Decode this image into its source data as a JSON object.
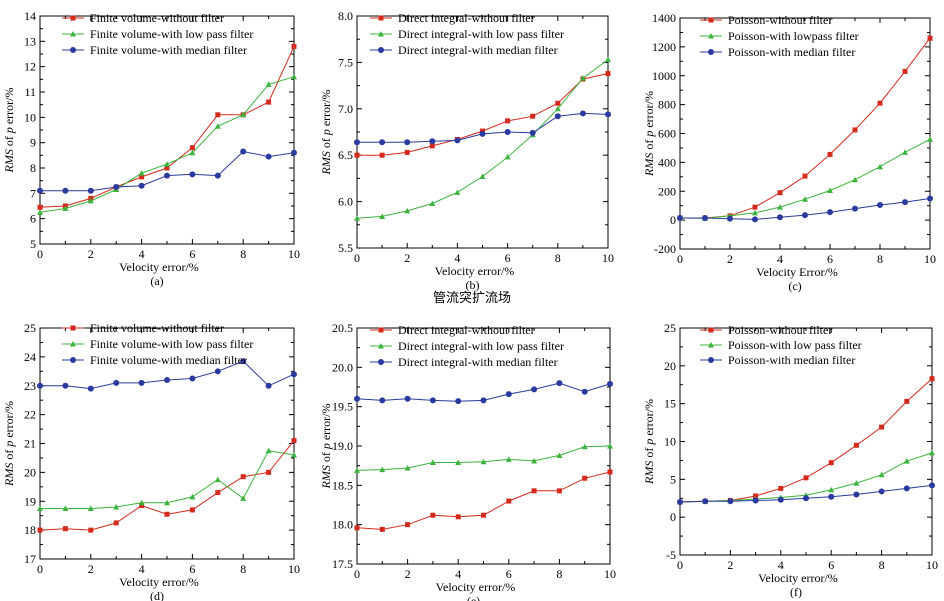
{
  "middle_title": "管流突扩流场",
  "colors": {
    "red": "#d42a1c",
    "green": "#3cb33c",
    "blue": "#2b3a9e"
  },
  "chart_data": [
    {
      "type": "line",
      "caption": "(a)",
      "xlabel": "Velocity error/%",
      "ylabel_italic": "RMS",
      "ylabel_mid": " of ",
      "ylabel_p": "p",
      "ylabel_rest": " error/%",
      "xlim": [
        0,
        10
      ],
      "ylim": [
        5,
        14
      ],
      "xticks": [
        0,
        2,
        4,
        6,
        8,
        10
      ],
      "yticks": [
        5,
        6,
        7,
        8,
        9,
        10,
        11,
        12,
        13,
        14
      ],
      "x": [
        0,
        1,
        2,
        3,
        4,
        5,
        6,
        7,
        8,
        9,
        10
      ],
      "series": [
        {
          "name": "Finite volume-without filter",
          "color": "red",
          "marker": "square",
          "values": [
            6.45,
            6.5,
            6.8,
            7.25,
            7.65,
            8.0,
            8.8,
            10.1,
            10.1,
            10.6,
            12.8
          ]
        },
        {
          "name": "Finite volume-with low pass filter",
          "color": "green",
          "marker": "triangle",
          "values": [
            6.25,
            6.4,
            6.7,
            7.15,
            7.8,
            8.15,
            8.6,
            9.65,
            10.1,
            11.3,
            11.6
          ]
        },
        {
          "name": "Finite volume-with median filter",
          "color": "blue",
          "marker": "circle",
          "values": [
            7.1,
            7.1,
            7.1,
            7.25,
            7.3,
            7.7,
            7.75,
            7.7,
            8.65,
            8.45,
            8.6
          ]
        }
      ]
    },
    {
      "type": "line",
      "caption": "(b)",
      "xlabel": "Velocity error/%",
      "ylabel_italic": "RMS",
      "ylabel_mid": " of ",
      "ylabel_p": "p",
      "ylabel_rest": " error/%",
      "xlim": [
        0,
        10
      ],
      "ylim": [
        5.5,
        8.0
      ],
      "xticks": [
        0,
        2,
        4,
        6,
        8,
        10
      ],
      "yticks": [
        5.5,
        6.0,
        6.5,
        7.0,
        7.5,
        8.0
      ],
      "ytick_labels": [
        "5.5",
        "6.0",
        "6.5",
        "7.0",
        "7.5",
        "8.0"
      ],
      "x": [
        0,
        1,
        2,
        3,
        4,
        5,
        6,
        7,
        8,
        9,
        10
      ],
      "series": [
        {
          "name": "Direct integral-without filter",
          "color": "red",
          "marker": "square",
          "values": [
            6.5,
            6.5,
            6.53,
            6.6,
            6.67,
            6.76,
            6.87,
            6.92,
            7.06,
            7.32,
            7.38
          ]
        },
        {
          "name": "Direct integral-with low pass filter",
          "color": "green",
          "marker": "triangle",
          "values": [
            5.82,
            5.84,
            5.9,
            5.98,
            6.1,
            6.27,
            6.48,
            6.72,
            7.0,
            7.33,
            7.53
          ]
        },
        {
          "name": "Direct integral-with median filter",
          "color": "blue",
          "marker": "circle",
          "values": [
            6.64,
            6.64,
            6.64,
            6.65,
            6.66,
            6.73,
            6.75,
            6.74,
            6.92,
            6.95,
            6.94
          ]
        }
      ]
    },
    {
      "type": "line",
      "caption": "(c)",
      "xlabel": "Velocity Error/%",
      "ylabel_italic": "RMS",
      "ylabel_mid": " of ",
      "ylabel_p": "p",
      "ylabel_rest": " error/%",
      "xlim": [
        0,
        10
      ],
      "ylim": [
        -200,
        1400
      ],
      "xticks": [
        0,
        2,
        4,
        6,
        8,
        10
      ],
      "yticks": [
        -200,
        0,
        200,
        400,
        600,
        800,
        1000,
        1200,
        1400
      ],
      "x": [
        0,
        1,
        2,
        3,
        4,
        5,
        6,
        7,
        8,
        9,
        10
      ],
      "series": [
        {
          "name": "Poisson-without filter",
          "color": "red",
          "marker": "square",
          "values": [
            15,
            15,
            30,
            90,
            190,
            305,
            455,
            625,
            810,
            1030,
            1260
          ]
        },
        {
          "name": "Poisson-with lowpass filter",
          "color": "green",
          "marker": "triangle",
          "values": [
            15,
            12,
            30,
            50,
            90,
            145,
            205,
            280,
            370,
            470,
            560
          ]
        },
        {
          "name": "Poisson-with median filter",
          "color": "blue",
          "marker": "circle",
          "values": [
            15,
            15,
            10,
            5,
            20,
            35,
            55,
            80,
            105,
            125,
            150
          ]
        }
      ]
    },
    {
      "type": "line",
      "caption": "(d)",
      "xlabel": "Velocity error/%",
      "ylabel_italic": "RMS",
      "ylabel_mid": " of ",
      "ylabel_p": "p",
      "ylabel_rest": " error/%",
      "xlim": [
        0,
        10
      ],
      "ylim": [
        17,
        25
      ],
      "xticks": [
        0,
        2,
        4,
        6,
        8,
        10
      ],
      "yticks": [
        17,
        18,
        19,
        20,
        21,
        22,
        23,
        24,
        25
      ],
      "x": [
        0,
        1,
        2,
        3,
        4,
        5,
        6,
        7,
        8,
        9,
        10
      ],
      "series": [
        {
          "name": "Finite volume-without filter",
          "color": "red",
          "marker": "square",
          "values": [
            18.0,
            18.05,
            18.0,
            18.25,
            18.85,
            18.55,
            18.7,
            19.3,
            19.85,
            20.0,
            21.1
          ]
        },
        {
          "name": "Finite volume-with low pass filter",
          "color": "green",
          "marker": "triangle",
          "values": [
            18.75,
            18.75,
            18.75,
            18.8,
            18.95,
            18.95,
            19.15,
            19.75,
            19.1,
            20.75,
            20.6
          ]
        },
        {
          "name": "Finite volume-with median filter",
          "color": "blue",
          "marker": "circle",
          "values": [
            23.0,
            23.0,
            22.9,
            23.1,
            23.1,
            23.2,
            23.25,
            23.5,
            23.85,
            23.0,
            23.4
          ]
        }
      ]
    },
    {
      "type": "line",
      "caption": "(e)",
      "xlabel": "Velocity error/%",
      "ylabel_italic": "RMS",
      "ylabel_mid": " of ",
      "ylabel_p": "p",
      "ylabel_rest": " error/%",
      "xlim": [
        0,
        10
      ],
      "ylim": [
        17.5,
        20.5
      ],
      "xticks": [
        0,
        2,
        4,
        6,
        8,
        10
      ],
      "yticks": [
        17.5,
        18.0,
        18.5,
        19.0,
        19.5,
        20.0,
        20.5
      ],
      "ytick_labels": [
        "17.5",
        "18.0",
        "18.5",
        "19.0",
        "19.5",
        "20.0",
        "20.5"
      ],
      "x": [
        0,
        1,
        2,
        3,
        4,
        5,
        6,
        7,
        8,
        9,
        10
      ],
      "series": [
        {
          "name": "Direct integral-without filter",
          "color": "red",
          "marker": "square",
          "values": [
            17.96,
            17.94,
            18.0,
            18.12,
            18.1,
            18.12,
            18.3,
            18.43,
            18.43,
            18.59,
            18.67
          ]
        },
        {
          "name": "Direct integral-with low pass filter",
          "color": "green",
          "marker": "triangle",
          "values": [
            18.69,
            18.7,
            18.72,
            18.79,
            18.79,
            18.8,
            18.83,
            18.81,
            18.88,
            18.99,
            19.0
          ]
        },
        {
          "name": "Direct integral-with median filter",
          "color": "blue",
          "marker": "circle",
          "values": [
            19.6,
            19.58,
            19.6,
            19.58,
            19.57,
            19.58,
            19.66,
            19.72,
            19.8,
            19.69,
            19.79
          ]
        }
      ]
    },
    {
      "type": "line",
      "caption": "(f)",
      "xlabel": "Velocity error/%",
      "ylabel_italic": "RMS",
      "ylabel_mid": " of ",
      "ylabel_p": "p",
      "ylabel_rest": " error/%",
      "xlim": [
        0,
        10
      ],
      "ylim": [
        -5,
        25
      ],
      "xticks": [
        0,
        2,
        4,
        6,
        8,
        10
      ],
      "yticks": [
        -5,
        0,
        5,
        10,
        15,
        20,
        25
      ],
      "x": [
        0,
        1,
        2,
        3,
        4,
        5,
        6,
        7,
        8,
        9,
        10
      ],
      "series": [
        {
          "name": "Poisson-without filter",
          "color": "red",
          "marker": "square",
          "values": [
            2.0,
            2.1,
            2.2,
            2.8,
            3.8,
            5.2,
            7.2,
            9.5,
            11.9,
            15.3,
            18.3
          ]
        },
        {
          "name": "Poisson-with low pass filter",
          "color": "green",
          "marker": "triangle",
          "values": [
            2.0,
            2.1,
            2.2,
            2.4,
            2.6,
            2.9,
            3.6,
            4.5,
            5.6,
            7.4,
            8.5
          ]
        },
        {
          "name": "Poisson-with median filter",
          "color": "blue",
          "marker": "circle",
          "values": [
            2.0,
            2.1,
            2.1,
            2.2,
            2.3,
            2.5,
            2.7,
            3.0,
            3.4,
            3.8,
            4.2
          ]
        }
      ]
    }
  ]
}
